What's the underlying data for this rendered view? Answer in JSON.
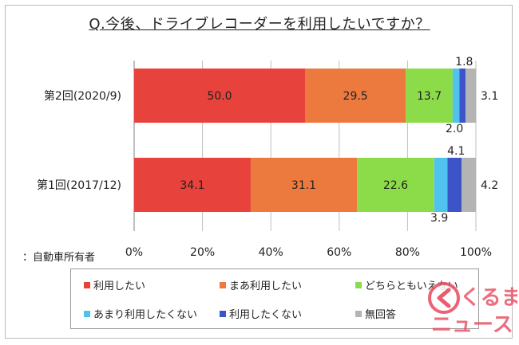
{
  "title": "Q.今後、ドライブレコーダーを利用したいですか？",
  "note": "：自動車所有者",
  "watermark_text": [
    "くるまの",
    "ニュース"
  ],
  "chart_data": {
    "type": "bar",
    "orientation": "horizontal",
    "stacked": true,
    "categories": [
      "第2回(2020/9)",
      "第1回(2017/12)"
    ],
    "series": [
      {
        "name": "利用したい",
        "values": [
          50.0,
          34.1
        ],
        "labels": [
          "50.0",
          "34.1"
        ],
        "color": "#e8423c"
      },
      {
        "name": "まあ利用したい",
        "values": [
          29.5,
          31.1
        ],
        "labels": [
          "29.5",
          "31.1"
        ],
        "color": "#ec7a3e"
      },
      {
        "name": "どちらともいえない",
        "values": [
          13.7,
          22.6
        ],
        "labels": [
          "13.7",
          "22.6"
        ],
        "color": "#8cdc4a"
      },
      {
        "name": "あまり利用したくない",
        "values": [
          2.0,
          3.9
        ],
        "labels": [
          "2.0",
          "3.9"
        ],
        "color": "#4fc3ee"
      },
      {
        "name": "利用したくない",
        "values": [
          1.8,
          4.1
        ],
        "labels": [
          "1.8",
          "4.1"
        ],
        "color": "#3b55c9"
      },
      {
        "name": "無回答",
        "values": [
          3.1,
          4.2
        ],
        "labels": [
          "3.1",
          "4.2"
        ],
        "color": "#b4b4b4"
      }
    ],
    "xlim": [
      0,
      100
    ],
    "xticks": [
      "0%",
      "20%",
      "40%",
      "60%",
      "80%",
      "100%"
    ],
    "grid": true,
    "legend_position": "bottom"
  }
}
